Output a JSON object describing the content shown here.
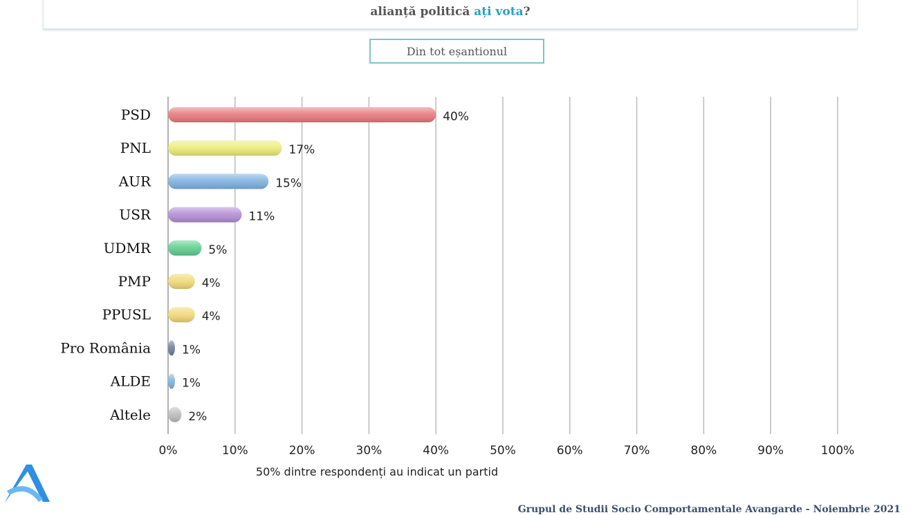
{
  "question": {
    "text_before": "alianță politică ",
    "highlight": "ați vota",
    "text_after": "?"
  },
  "filter_tab": {
    "label": "Din tot eșantionul"
  },
  "chart_data": {
    "type": "bar",
    "orientation": "horizontal",
    "categories": [
      "PSD",
      "PNL",
      "AUR",
      "USR",
      "UDMR",
      "PMP",
      "PPUSL",
      "Pro România",
      "ALDE",
      "Altele"
    ],
    "values": [
      40,
      17,
      15,
      11,
      5,
      4,
      4,
      1,
      1,
      2
    ],
    "data_labels": [
      "40%",
      "17%",
      "15%",
      "11%",
      "5%",
      "4%",
      "4%",
      "1%",
      "1%",
      "2%"
    ],
    "colors": [
      "#e97a7e",
      "#ecec7a",
      "#7fb3e0",
      "#b38ed6",
      "#5fcf8f",
      "#f2d978",
      "#f2d978",
      "#6f7f9f",
      "#7fb3e0",
      "#bdbdbd"
    ],
    "xlim": [
      0,
      100
    ],
    "xticks": [
      "0%",
      "10%",
      "20%",
      "30%",
      "40%",
      "50%",
      "60%",
      "70%",
      "80%",
      "90%",
      "100%"
    ],
    "grid": true,
    "xlabel": "50% dintre respondenți au indicat un partid"
  },
  "footer": {
    "text": "Grupul de Studii Socio Comportamentale Avangarde   - Noiembrie 2021"
  }
}
